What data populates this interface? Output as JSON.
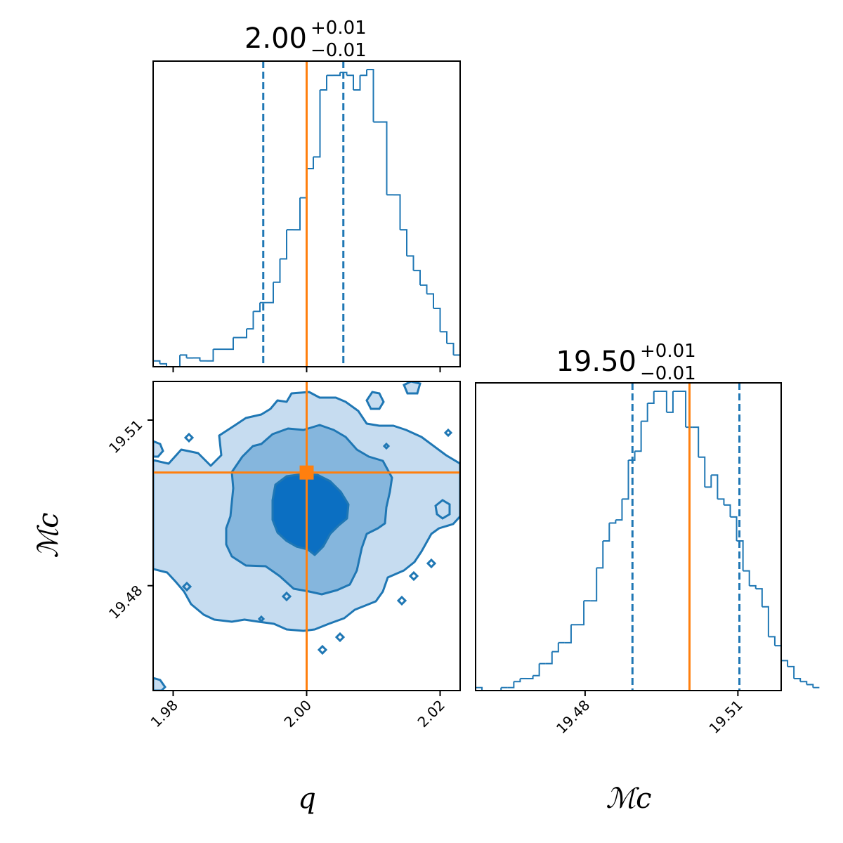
{
  "colors": {
    "posterior": "#1f77b4",
    "truth": "#ff7f0e",
    "fill_outer": "#c6dcf0",
    "fill_mid": "#85b6dd",
    "fill_inner": "#0b6fc2"
  },
  "chart_data": [
    {
      "type": "bar",
      "panel": "histogram-q",
      "title": "2.00",
      "title_plus": "+0.01",
      "title_minus": "−0.01",
      "xlim": [
        1.977,
        2.023
      ],
      "xticks": [
        1.98,
        2.0,
        2.02
      ],
      "quantiles": [
        1.9935,
        2.0055
      ],
      "truth": 2.0,
      "bin_start": 1.977,
      "bin_width": 0.001,
      "values": [
        2,
        1,
        0,
        0,
        4,
        3,
        3,
        2,
        2,
        6,
        6,
        6,
        10,
        10,
        13,
        19,
        22,
        22,
        29,
        37,
        47,
        47,
        58,
        68,
        72,
        95,
        100,
        100,
        101,
        100,
        95,
        100,
        102,
        84,
        84,
        59,
        59,
        47,
        38,
        33,
        28,
        25,
        20,
        12,
        8,
        4
      ]
    },
    {
      "type": "contour",
      "panel": "corner-q-mc",
      "xlabel": "q",
      "ylabel": "ℳc",
      "xlim": [
        1.977,
        2.023
      ],
      "ylim": [
        19.461,
        19.517
      ],
      "xticks": [
        "1.98",
        "2.00",
        "2.02"
      ],
      "xtick_values": [
        1.98,
        2.0,
        2.02
      ],
      "yticks": [
        "19.48",
        "19.51"
      ],
      "ytick_values": [
        19.48,
        19.51
      ],
      "truth": [
        2.0,
        19.5005
      ],
      "levels": [
        "outer",
        "mid",
        "inner"
      ]
    },
    {
      "type": "bar",
      "panel": "histogram-mc",
      "title": "19.50",
      "title_plus": "+0.01",
      "title_minus": "−0.01",
      "xlabel": "ℳc",
      "xlim": [
        19.4585,
        19.5185
      ],
      "xticks": [
        "19.48",
        "19.51"
      ],
      "xtick_values": [
        19.48,
        19.51
      ],
      "quantiles": [
        19.4893,
        19.5103
      ],
      "truth": 19.5005,
      "bin_start": 19.4585,
      "bin_width": 0.00125,
      "values": [
        1,
        0,
        0,
        0,
        1,
        1,
        3,
        4,
        4,
        5,
        9,
        9,
        13,
        16,
        16,
        22,
        22,
        30,
        30,
        41,
        50,
        56,
        57,
        64,
        77,
        80,
        90,
        96,
        100,
        100,
        93,
        100,
        100,
        88,
        88,
        78,
        68,
        72,
        64,
        62,
        58,
        50,
        40,
        35,
        34,
        28,
        18,
        15,
        10,
        8,
        4,
        3,
        2,
        1
      ]
    }
  ]
}
